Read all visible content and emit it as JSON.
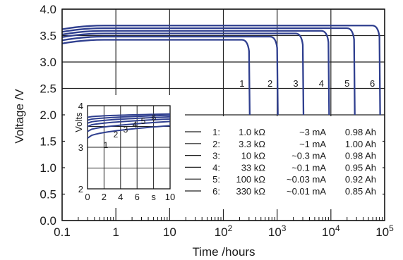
{
  "chart_data": {
    "type": "line",
    "xlabel": "Time /hours",
    "ylabel": "Voltage /V",
    "xscale": "log",
    "xlim": [
      0.1,
      100000
    ],
    "ylim": [
      0.0,
      4.0
    ],
    "grid": true,
    "x_ticks": [
      "0.1",
      "1",
      "10",
      "10^2",
      "10^3",
      "10^4",
      "10^5"
    ],
    "y_ticks": [
      "0.0",
      "0.5",
      "1.0",
      "1.5",
      "2.0",
      "2.5",
      "3.0",
      "3.5",
      "4.0"
    ],
    "color": "#2f3f8f",
    "series": [
      {
        "name": "1",
        "plateau": 3.42,
        "end_hours": 300,
        "load": "1.0 kΩ",
        "current": "~3 mA",
        "capacity": "0.98 Ah"
      },
      {
        "name": "2",
        "plateau": 3.48,
        "end_hours": 1000,
        "load": "3.3 kΩ",
        "current": "~1 mA",
        "capacity": "1.00 Ah"
      },
      {
        "name": "3",
        "plateau": 3.54,
        "end_hours": 3000,
        "load": "10 kΩ",
        "current": "~0.3 mA",
        "capacity": "0.98 Ah"
      },
      {
        "name": "4",
        "plateau": 3.59,
        "end_hours": 9000,
        "load": "33 kΩ",
        "current": "~0.1 mA",
        "capacity": "0.95 Ah"
      },
      {
        "name": "5",
        "plateau": 3.64,
        "end_hours": 27000,
        "load": "100 kΩ",
        "current": "~0.03 mA",
        "capacity": "0.92 Ah"
      },
      {
        "name": "6",
        "plateau": 3.69,
        "end_hours": 80000,
        "load": "330 kΩ",
        "current": "~0.01 mA",
        "capacity": "0.85 Ah"
      }
    ],
    "legend": [
      {
        "id": "1:",
        "load": "1.0 kΩ",
        "current": "~3 mA",
        "capacity": "0.98 Ah"
      },
      {
        "id": "2:",
        "load": "3.3 kΩ",
        "current": "~1 mA",
        "capacity": "1.00 Ah"
      },
      {
        "id": "3:",
        "load": "10 kΩ",
        "current": "~0.3 mA",
        "capacity": "0.98 Ah"
      },
      {
        "id": "4:",
        "load": "33 kΩ",
        "current": "~0.1 mA",
        "capacity": "0.95 Ah"
      },
      {
        "id": "5:",
        "load": "100 kΩ",
        "current": "~0.03 mA",
        "capacity": "0.92 Ah"
      },
      {
        "id": "6:",
        "load": "330 kΩ",
        "current": "~0.01 mA",
        "capacity": "0.85 Ah"
      }
    ],
    "inset": {
      "ylabel": "Volts",
      "xlabel": "s",
      "xlim": [
        0,
        10
      ],
      "ylim": [
        2,
        4
      ],
      "x_ticks": [
        "0",
        "2",
        "4",
        "6",
        "s",
        "10"
      ],
      "y_ticks": [
        "2",
        "3",
        "4"
      ],
      "series": [
        {
          "name": "1",
          "start": 3.22,
          "end": 3.52
        },
        {
          "name": "2",
          "start": 3.38,
          "end": 3.62
        },
        {
          "name": "3",
          "start": 3.5,
          "end": 3.68
        },
        {
          "name": "4",
          "start": 3.58,
          "end": 3.73
        },
        {
          "name": "5",
          "start": 3.65,
          "end": 3.77
        },
        {
          "name": "6",
          "start": 3.72,
          "end": 3.8
        }
      ]
    }
  }
}
